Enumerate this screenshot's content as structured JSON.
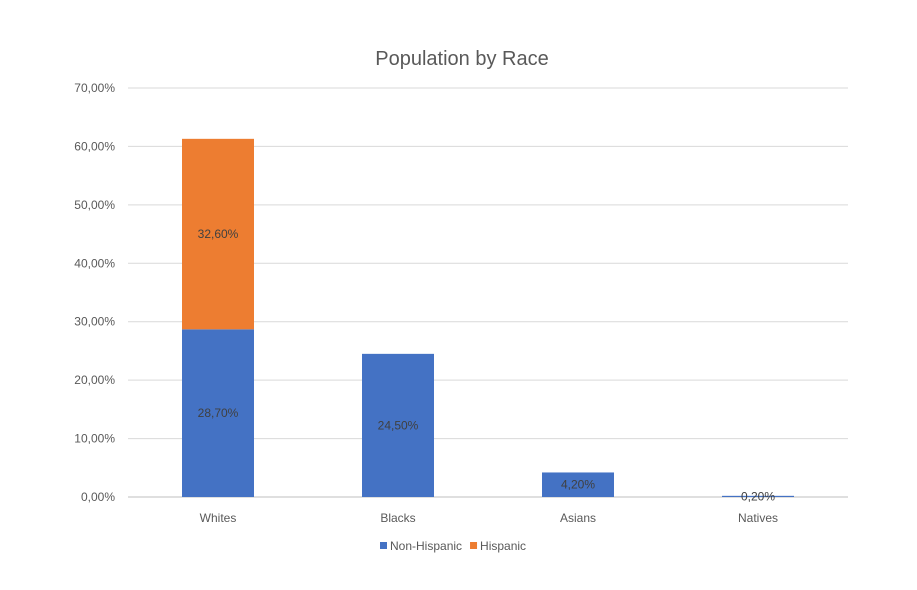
{
  "chart_data": {
    "type": "bar",
    "stacked": true,
    "title": "Population by Race",
    "xlabel": "",
    "ylabel": "",
    "categories": [
      "Whites",
      "Blacks",
      "Asians",
      "Natives"
    ],
    "series": [
      {
        "name": "Non-Hispanic",
        "color": "#4472C4",
        "values": [
          28.7,
          24.5,
          4.2,
          0.2
        ],
        "labels": [
          "28,70%",
          "24,50%",
          "4,20%",
          "0,20%"
        ]
      },
      {
        "name": "Hispanic",
        "color": "#ED7D31",
        "values": [
          32.6,
          0,
          0,
          0
        ],
        "labels": [
          "32,60%",
          "",
          "",
          ""
        ]
      }
    ],
    "ylim": [
      0,
      70
    ],
    "yticks": [
      0,
      10,
      20,
      30,
      40,
      50,
      60,
      70
    ],
    "ytick_labels": [
      "0,00%",
      "10,00%",
      "20,00%",
      "30,00%",
      "40,00%",
      "50,00%",
      "60,00%",
      "70,00%"
    ],
    "grid": true,
    "legend": "bottom"
  }
}
